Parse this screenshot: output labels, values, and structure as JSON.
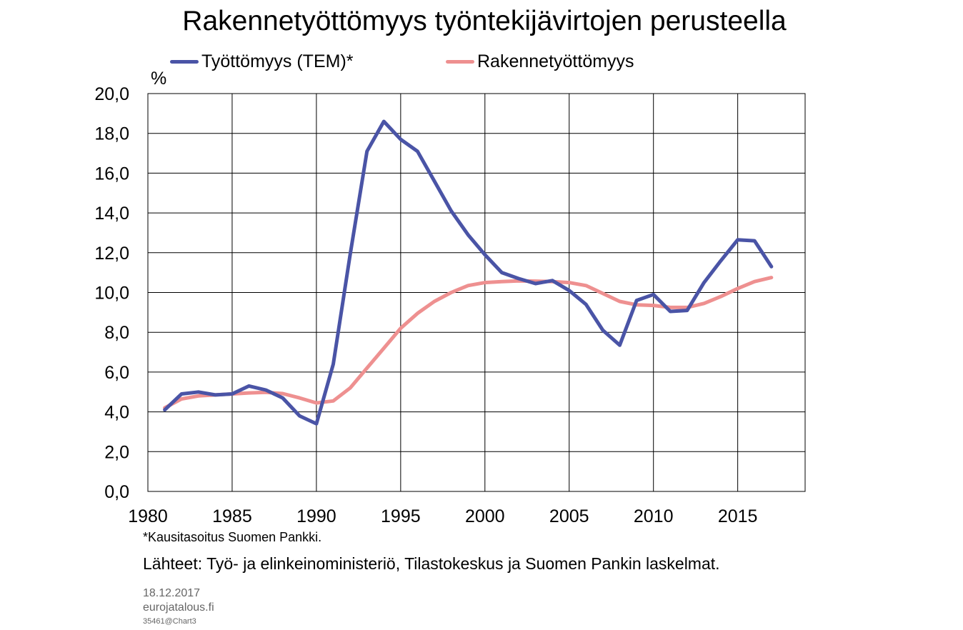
{
  "chart_data": {
    "type": "line",
    "title": "Rakennetyöttömyys työntekijävirtojen perusteella",
    "ylabel": "%",
    "xlabel": "",
    "xlim": [
      1980,
      2019
    ],
    "ylim": [
      0,
      20
    ],
    "x_ticks": [
      "1980",
      "1985",
      "1990",
      "1995",
      "2000",
      "2005",
      "2010",
      "2015"
    ],
    "y_ticks": [
      "0,0",
      "2,0",
      "4,0",
      "6,0",
      "8,0",
      "10,0",
      "12,0",
      "14,0",
      "16,0",
      "18,0",
      "20,0"
    ],
    "grid": true,
    "legend_position": "top",
    "x": [
      1981,
      1982,
      1983,
      1984,
      1985,
      1986,
      1987,
      1988,
      1989,
      1990,
      1991,
      1992,
      1993,
      1994,
      1995,
      1996,
      1997,
      1998,
      1999,
      2000,
      2001,
      2002,
      2003,
      2004,
      2005,
      2006,
      2007,
      2008,
      2009,
      2010,
      2011,
      2012,
      2013,
      2014,
      2015,
      2016,
      2017
    ],
    "series": [
      {
        "name": "Työttömyys (TEM)*",
        "color": "#4a54a6",
        "values": [
          4.1,
          4.9,
          5.0,
          4.85,
          4.9,
          5.3,
          5.1,
          4.7,
          3.8,
          3.4,
          6.4,
          11.9,
          17.1,
          18.6,
          17.7,
          17.1,
          15.6,
          14.1,
          12.9,
          11.9,
          11.0,
          10.7,
          10.45,
          10.6,
          10.1,
          9.4,
          8.1,
          7.35,
          9.6,
          9.9,
          9.05,
          9.1,
          10.5,
          11.6,
          12.65,
          12.6,
          11.3
        ]
      },
      {
        "name": "Rakennetyöttömyys",
        "color": "#ee9090",
        "values": [
          4.2,
          4.65,
          4.8,
          4.85,
          4.9,
          4.95,
          4.98,
          4.92,
          4.7,
          4.45,
          4.55,
          5.2,
          6.2,
          7.2,
          8.2,
          8.95,
          9.55,
          10.0,
          10.35,
          10.5,
          10.55,
          10.58,
          10.57,
          10.55,
          10.5,
          10.35,
          9.95,
          9.55,
          9.38,
          9.35,
          9.25,
          9.25,
          9.45,
          9.8,
          10.2,
          10.55,
          10.75
        ]
      }
    ]
  },
  "footer": {
    "note": "*Kausitasoitus Suomen Pankki.",
    "sources": "Lähteet: Työ- ja elinkeinoministeriö, Tilastokeskus ja Suomen Pankin laskelmat.",
    "date": "18.12.2017",
    "site": "eurojatalous.fi",
    "code": "35461@Chart3"
  }
}
